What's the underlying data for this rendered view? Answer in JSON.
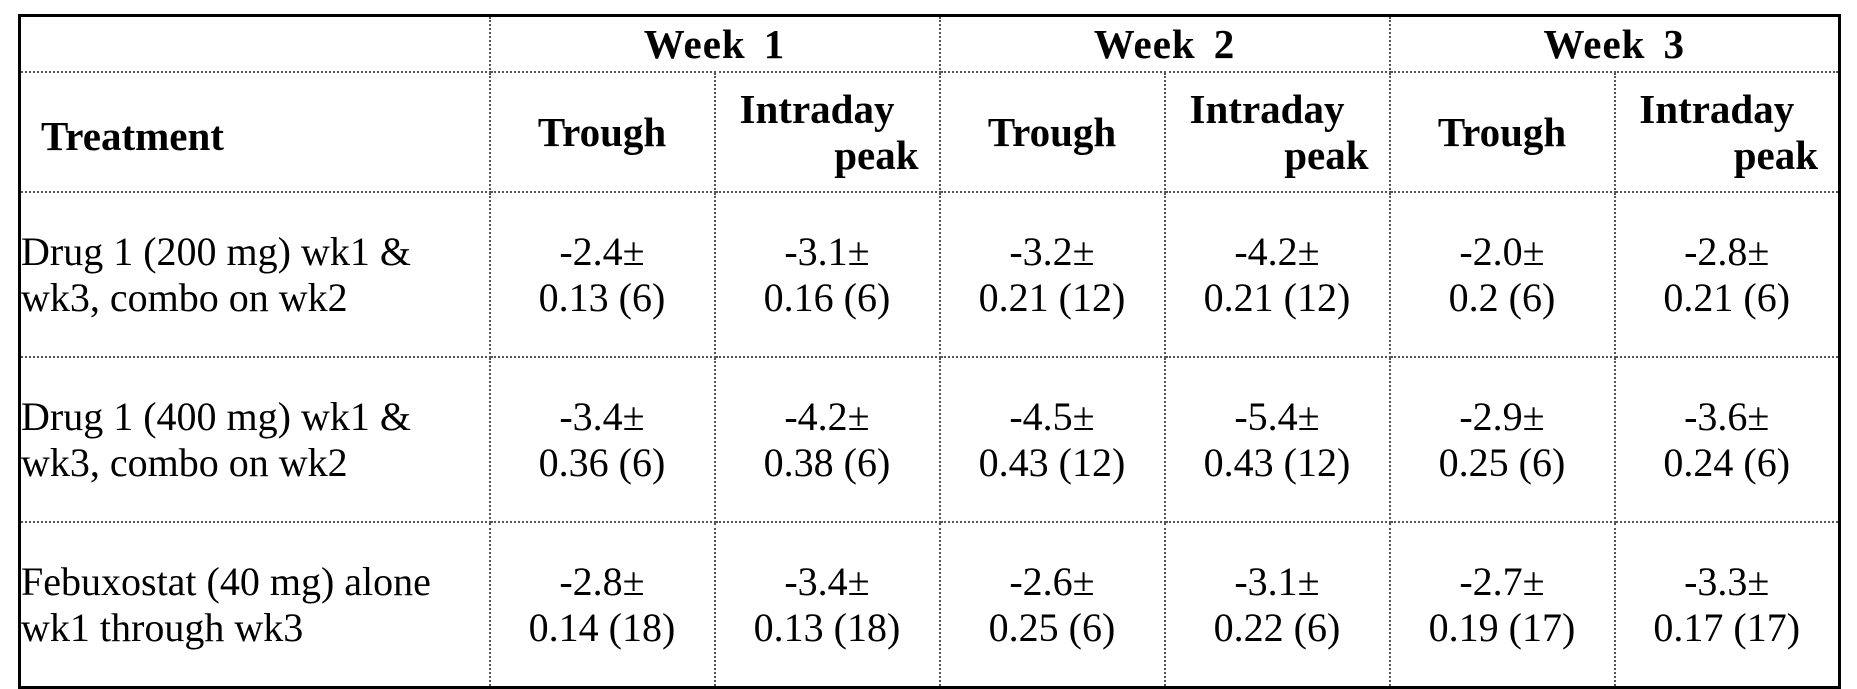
{
  "table": {
    "weeks": [
      "Week",
      "Week",
      "Week"
    ],
    "week_numbers": [
      "1",
      "2",
      "3"
    ],
    "treatment_header": "Treatment",
    "subheaders": {
      "trough": "Trough",
      "peak_line1": "Intraday",
      "peak_line2": "peak"
    },
    "rows": [
      {
        "treatment": "Drug 1 (200 mg) wk1 & wk3, combo on wk2",
        "values": [
          {
            "mean": "-2.4±",
            "sd": "0.13 (6)"
          },
          {
            "mean": "-3.1±",
            "sd": "0.16 (6)"
          },
          {
            "mean": "-3.2±",
            "sd": "0.21 (12)"
          },
          {
            "mean": "-4.2±",
            "sd": "0.21 (12)"
          },
          {
            "mean": "-2.0±",
            "sd": "0.2 (6)"
          },
          {
            "mean": "-2.8±",
            "sd": "0.21 (6)"
          }
        ]
      },
      {
        "treatment": "Drug 1 (400 mg) wk1 & wk3, combo on wk2",
        "values": [
          {
            "mean": "-3.4±",
            "sd": "0.36 (6)"
          },
          {
            "mean": "-4.2±",
            "sd": "0.38 (6)"
          },
          {
            "mean": "-4.5±",
            "sd": "0.43 (12)"
          },
          {
            "mean": "-5.4±",
            "sd": "0.43 (12)"
          },
          {
            "mean": "-2.9±",
            "sd": "0.25 (6)"
          },
          {
            "mean": "-3.6±",
            "sd": "0.24 (6)"
          }
        ]
      },
      {
        "treatment": "Febuxostat (40 mg) alone wk1 through wk3",
        "values": [
          {
            "mean": "-2.8±",
            "sd": "0.14 (18)"
          },
          {
            "mean": "-3.4±",
            "sd": "0.13 (18)"
          },
          {
            "mean": "-2.6±",
            "sd": "0.25 (6)"
          },
          {
            "mean": "-3.1±",
            "sd": "0.22 (6)"
          },
          {
            "mean": "-2.7±",
            "sd": "0.19 (17)"
          },
          {
            "mean": "-3.3±",
            "sd": "0.17 (17)"
          }
        ]
      }
    ]
  }
}
